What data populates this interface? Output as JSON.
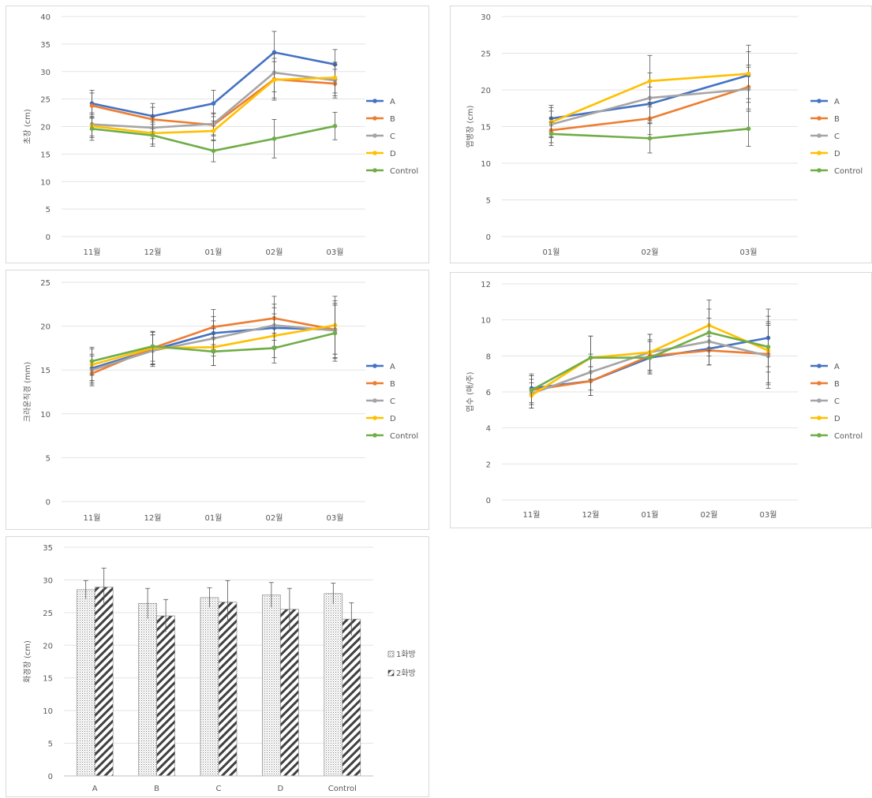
{
  "chart_data": [
    {
      "id": "c1",
      "type": "line",
      "ylabel": "초장 (cm)",
      "categories": [
        "11월",
        "12월",
        "01월",
        "02월",
        "03월"
      ],
      "ylim": [
        0,
        40
      ],
      "yticks": [
        0,
        5,
        10,
        15,
        20,
        25,
        30,
        35,
        40
      ],
      "legend": "right",
      "series": [
        {
          "name": "A",
          "color": "#4472C4",
          "values": [
            24.2,
            21.9,
            24.2,
            33.5,
            31.3
          ],
          "err": [
            2.4,
            2.3,
            2.4,
            3.8,
            2.7
          ]
        },
        {
          "name": "B",
          "color": "#ED7D31",
          "values": [
            23.8,
            21.3,
            20.3,
            28.6,
            27.8
          ],
          "err": [
            2.3,
            2.2,
            2.0,
            3.8,
            2.6
          ]
        },
        {
          "name": "C",
          "color": "#A5A5A5",
          "values": [
            20.4,
            19.8,
            20.5,
            29.8,
            28.4
          ],
          "err": [
            2.1,
            2.0,
            2.0,
            3.5,
            2.8
          ]
        },
        {
          "name": "D",
          "color": "#FFC000",
          "values": [
            20.1,
            18.8,
            19.2,
            28.5,
            28.9
          ],
          "err": [
            2.1,
            2.0,
            1.8,
            3.3,
            2.8
          ]
        },
        {
          "name": "Control",
          "color": "#70AD47",
          "values": [
            19.6,
            18.4,
            15.6,
            17.8,
            20.1
          ],
          "err": [
            2.1,
            2.0,
            2.0,
            3.5,
            2.5
          ]
        }
      ]
    },
    {
      "id": "c2",
      "type": "line",
      "ylabel": "엽병장 (cm)",
      "categories": [
        "01월",
        "02월",
        "03월"
      ],
      "ylim": [
        0,
        30
      ],
      "yticks": [
        0,
        5,
        10,
        15,
        20,
        25,
        30
      ],
      "legend": "right",
      "series": [
        {
          "name": "A",
          "color": "#4472C4",
          "values": [
            16.1,
            18.1,
            22.0
          ],
          "err": [
            1.8,
            2.3,
            3.2
          ]
        },
        {
          "name": "B",
          "color": "#ED7D31",
          "values": [
            14.5,
            16.1,
            20.4
          ],
          "err": [
            1.7,
            2.2,
            3.0
          ]
        },
        {
          "name": "C",
          "color": "#A5A5A5",
          "values": [
            15.3,
            18.9,
            20.1
          ],
          "err": [
            1.8,
            3.4,
            3.0
          ]
        },
        {
          "name": "D",
          "color": "#FFC000",
          "values": [
            15.6,
            21.2,
            22.2
          ],
          "err": [
            2.0,
            3.5,
            3.9
          ]
        },
        {
          "name": "Control",
          "color": "#70AD47",
          "values": [
            14.0,
            13.4,
            14.7
          ],
          "err": [
            1.6,
            2.0,
            2.4
          ]
        }
      ]
    },
    {
      "id": "c3",
      "type": "line",
      "ylabel": "크라운직경 (mm)",
      "categories": [
        "11월",
        "12월",
        "01월",
        "02월",
        "03월"
      ],
      "ylim": [
        0,
        25
      ],
      "yticks": [
        0,
        5,
        10,
        15,
        20,
        25
      ],
      "legend": "right",
      "series": [
        {
          "name": "A",
          "color": "#4472C4",
          "values": [
            15.2,
            17.3,
            19.2,
            19.8,
            19.6
          ],
          "err": [
            1.6,
            1.7,
            1.9,
            2.3,
            3.3
          ]
        },
        {
          "name": "B",
          "color": "#ED7D31",
          "values": [
            14.6,
            17.5,
            19.9,
            20.9,
            19.6
          ],
          "err": [
            1.4,
            1.9,
            2.0,
            2.5,
            2.8
          ]
        },
        {
          "name": "C",
          "color": "#A5A5A5",
          "values": [
            15.0,
            17.2,
            18.6,
            20.1,
            19.5
          ],
          "err": [
            1.6,
            1.8,
            2.0,
            2.4,
            3.1
          ]
        },
        {
          "name": "D",
          "color": "#FFC000",
          "values": [
            15.6,
            17.5,
            17.6,
            18.9,
            20.1
          ],
          "err": [
            1.8,
            1.8,
            2.1,
            2.5,
            3.3
          ]
        },
        {
          "name": "Control",
          "color": "#70AD47",
          "values": [
            16.0,
            17.7,
            17.1,
            17.5,
            19.2
          ],
          "err": [
            1.6,
            1.7,
            1.6,
            1.7,
            3.2
          ]
        }
      ]
    },
    {
      "id": "c4",
      "type": "line",
      "ylabel": "엽수 (매/주)",
      "categories": [
        "11월",
        "12월",
        "01월",
        "02월",
        "03월"
      ],
      "ylim": [
        0,
        12
      ],
      "yticks": [
        0,
        2,
        4,
        6,
        8,
        10,
        12
      ],
      "legend": "right",
      "series": [
        {
          "name": "A",
          "color": "#4472C4",
          "values": [
            6.2,
            6.6,
            7.9,
            8.4,
            9.0
          ],
          "err": [
            0.8,
            0.8,
            0.9,
            0.9,
            1.6
          ]
        },
        {
          "name": "B",
          "color": "#ED7D31",
          "values": [
            6.1,
            6.6,
            8.0,
            8.3,
            8.1
          ],
          "err": [
            0.8,
            0.8,
            0.9,
            0.8,
            1.6
          ]
        },
        {
          "name": "C",
          "color": "#A5A5A5",
          "values": [
            5.9,
            7.1,
            8.2,
            8.8,
            8.0
          ],
          "err": [
            0.8,
            1.0,
            1.0,
            1.3,
            1.8
          ]
        },
        {
          "name": "D",
          "color": "#FFC000",
          "values": [
            5.8,
            7.9,
            8.2,
            9.7,
            8.3
          ],
          "err": [
            0.7,
            1.2,
            1.0,
            1.4,
            1.9
          ]
        },
        {
          "name": "Control",
          "color": "#70AD47",
          "values": [
            6.1,
            7.9,
            7.9,
            9.3,
            8.5
          ],
          "err": [
            0.8,
            1.2,
            0.9,
            1.3,
            1.4
          ]
        }
      ]
    },
    {
      "id": "c5",
      "type": "bar",
      "ylabel": "화경장 (cm)",
      "categories": [
        "A",
        "B",
        "C",
        "D",
        "Control"
      ],
      "ylim": [
        0,
        35
      ],
      "yticks": [
        0,
        5,
        10,
        15,
        20,
        25,
        30,
        35
      ],
      "legend": "right",
      "series": [
        {
          "name": "1화방",
          "pattern": "dots",
          "values": [
            28.5,
            26.4,
            27.3,
            27.7,
            27.9
          ],
          "err": [
            1.4,
            2.3,
            1.5,
            1.9,
            1.6
          ]
        },
        {
          "name": "2화방",
          "pattern": "hatch",
          "values": [
            28.9,
            24.5,
            26.6,
            25.5,
            24.0
          ],
          "err": [
            2.9,
            2.5,
            3.3,
            3.2,
            2.5
          ]
        }
      ]
    }
  ]
}
